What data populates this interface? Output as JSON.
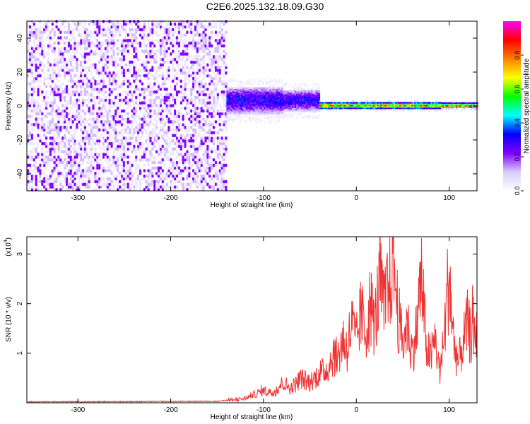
{
  "figure_title": "C2E6.2025.132.18.09.G30",
  "chart_data": [
    {
      "type": "heatmap",
      "xlabel": "Height of straight line (km)",
      "ylabel": "Frequency (Hz)",
      "xlim": [
        -355,
        130
      ],
      "ylim": [
        -50,
        50
      ],
      "xticks": [
        -300,
        -200,
        -100,
        0,
        100
      ],
      "yticks": [
        -40,
        -20,
        0,
        20,
        40
      ],
      "colorbar": {
        "label": "Normalized spectral amplitude",
        "ticks": [
          0.0,
          0.2,
          0.4,
          0.6,
          0.8
        ],
        "range": [
          0,
          1
        ],
        "colormap": [
          "#ffffff",
          "#d9ccff",
          "#8000ff",
          "#0000ff",
          "#00ffff",
          "#00ff00",
          "#ffff00",
          "#ff8000",
          "#ff0000",
          "#ff00ff"
        ]
      },
      "regions": [
        {
          "x_range": [
            -355,
            -140
          ],
          "freq_range": [
            -50,
            50
          ],
          "amplitude": 0.05,
          "pattern": "broadband noise"
        },
        {
          "x_range": [
            -140,
            -40
          ],
          "freq_center": 3,
          "freq_halfwidth": 8,
          "amplitude": 0.35
        },
        {
          "x_range": [
            -40,
            130
          ],
          "freq_center": 0,
          "freq_halfwidth": 2,
          "amplitude": 0.85
        }
      ]
    },
    {
      "type": "line",
      "xlabel": "Height of straight line (km)",
      "ylabel": "SNR (10 * v/v)",
      "yscale_note": "(x10",
      "yscale_exp": "4",
      "xlim": [
        -355,
        130
      ],
      "ylim": [
        0,
        3.35
      ],
      "xticks": [
        -300,
        -200,
        -100,
        0,
        100
      ],
      "yticks": [
        1,
        2,
        3
      ],
      "color": "#ee3333",
      "series": [
        {
          "x": [
            -355,
            -150,
            -120,
            -100,
            -90,
            -80,
            -70,
            -60,
            -50,
            -40,
            -30,
            -25,
            -20,
            -15,
            -10,
            -5,
            0,
            5,
            10,
            15,
            18,
            20,
            22,
            25,
            28,
            30,
            33,
            35,
            38,
            40,
            42,
            45,
            48,
            50,
            55,
            60,
            65,
            68,
            70,
            73,
            75,
            80,
            85,
            90,
            95,
            98,
            100,
            102,
            105,
            110,
            115,
            120,
            123,
            125,
            128,
            130
          ],
          "values": [
            0.02,
            0.03,
            0.08,
            0.25,
            0.2,
            0.4,
            0.3,
            0.5,
            0.4,
            0.6,
            0.7,
            1.0,
            0.9,
            1.3,
            1.1,
            1.6,
            1.2,
            1.8,
            1.4,
            2.0,
            1.7,
            1.6,
            1.9,
            2.5,
            2.2,
            1.8,
            2.3,
            2.2,
            2.8,
            3.3,
            2.4,
            1.8,
            1.4,
            1.2,
            1.6,
            1.0,
            1.5,
            2.2,
            2.5,
            1.8,
            1.2,
            0.9,
            1.3,
            0.6,
            1.4,
            2.2,
            2.65,
            2.0,
            1.2,
            0.8,
            1.2,
            1.6,
            1.3,
            1.7,
            1.1,
            1.85
          ]
        }
      ]
    }
  ]
}
